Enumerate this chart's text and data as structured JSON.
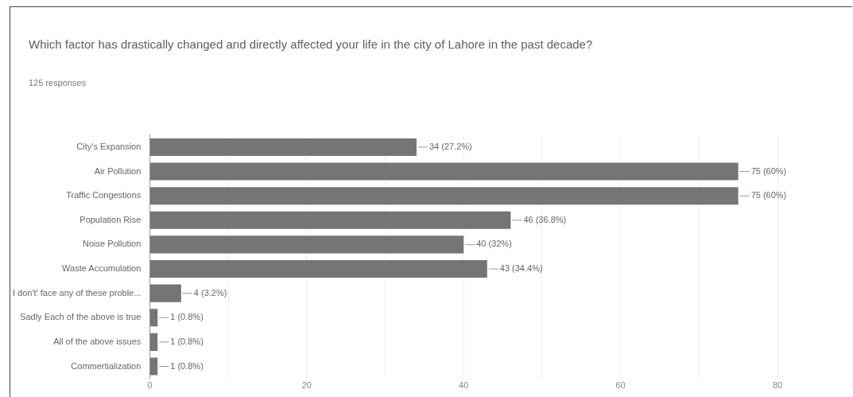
{
  "chart_data": {
    "type": "bar",
    "orientation": "horizontal",
    "title": "Which factor has drastically changed and directly affected your life in the city of Lahore in the past decade?",
    "subtitle": "125 responses",
    "categories": [
      "City's Expansion",
      "Air Pollution",
      "Traffic Congestions",
      "Population Rise",
      "Noise Pollution",
      "Waste Accumulation",
      "I don't' face any of these proble...",
      "Sadly Each of the above is true",
      "All of the above issues",
      "Commertialization"
    ],
    "values": [
      34,
      75,
      75,
      46,
      40,
      43,
      4,
      1,
      1,
      1
    ],
    "value_labels": [
      "34 (27.2%)",
      "75 (60%)",
      "75 (60%)",
      "46 (36.8%)",
      "40 (32%)",
      "43 (34.4%)",
      "4 (3.2%)",
      "1 (0.8%)",
      "1 (0.8%)",
      "1 (0.8%)"
    ],
    "color": "#757575",
    "xlim": [
      0,
      80
    ],
    "xticks": [
      0,
      {
        "value": 10,
        "label": null
      },
      20,
      {
        "value": 30,
        "label": null
      },
      40,
      {
        "value": 50,
        "label": null
      },
      60,
      {
        "value": 70,
        "label": null
      },
      80
    ],
    "grid": "x",
    "legend": false
  }
}
